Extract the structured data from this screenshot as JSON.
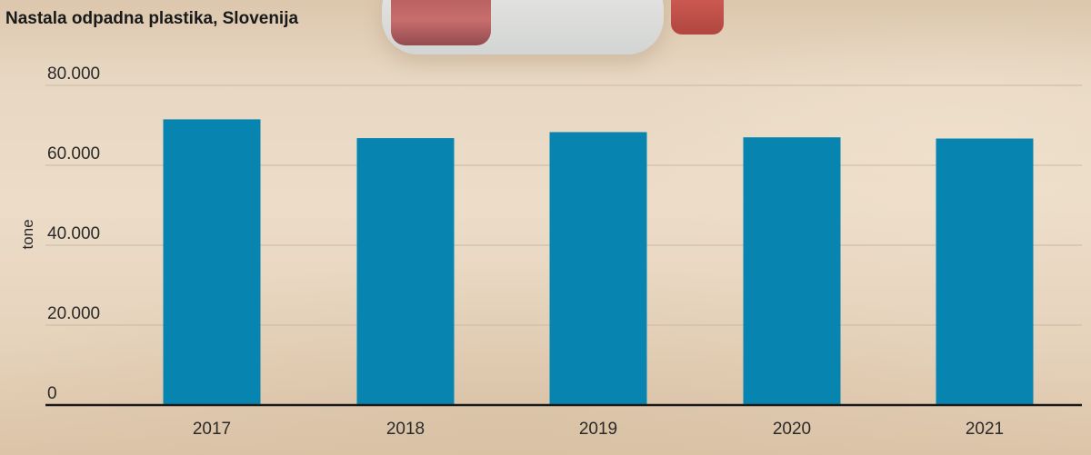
{
  "chart_data": {
    "type": "bar",
    "title": "Nastala odpadna plastika, Slovenija",
    "ylabel": "tone",
    "xlabel": "",
    "categories": [
      "2017",
      "2018",
      "2019",
      "2020",
      "2021"
    ],
    "values": [
      71500,
      66800,
      68300,
      67000,
      66700
    ],
    "ylim": [
      0,
      80000
    ],
    "yticks": [
      0,
      20000,
      40000,
      60000,
      80000
    ],
    "ytick_labels": [
      "0",
      "20.000",
      "40.000",
      "60.000",
      "80.000"
    ],
    "grid": true,
    "bar_color": "#0785b0",
    "gridline_color": "#c9b8a4",
    "axis_color": "#1a1a1a"
  }
}
